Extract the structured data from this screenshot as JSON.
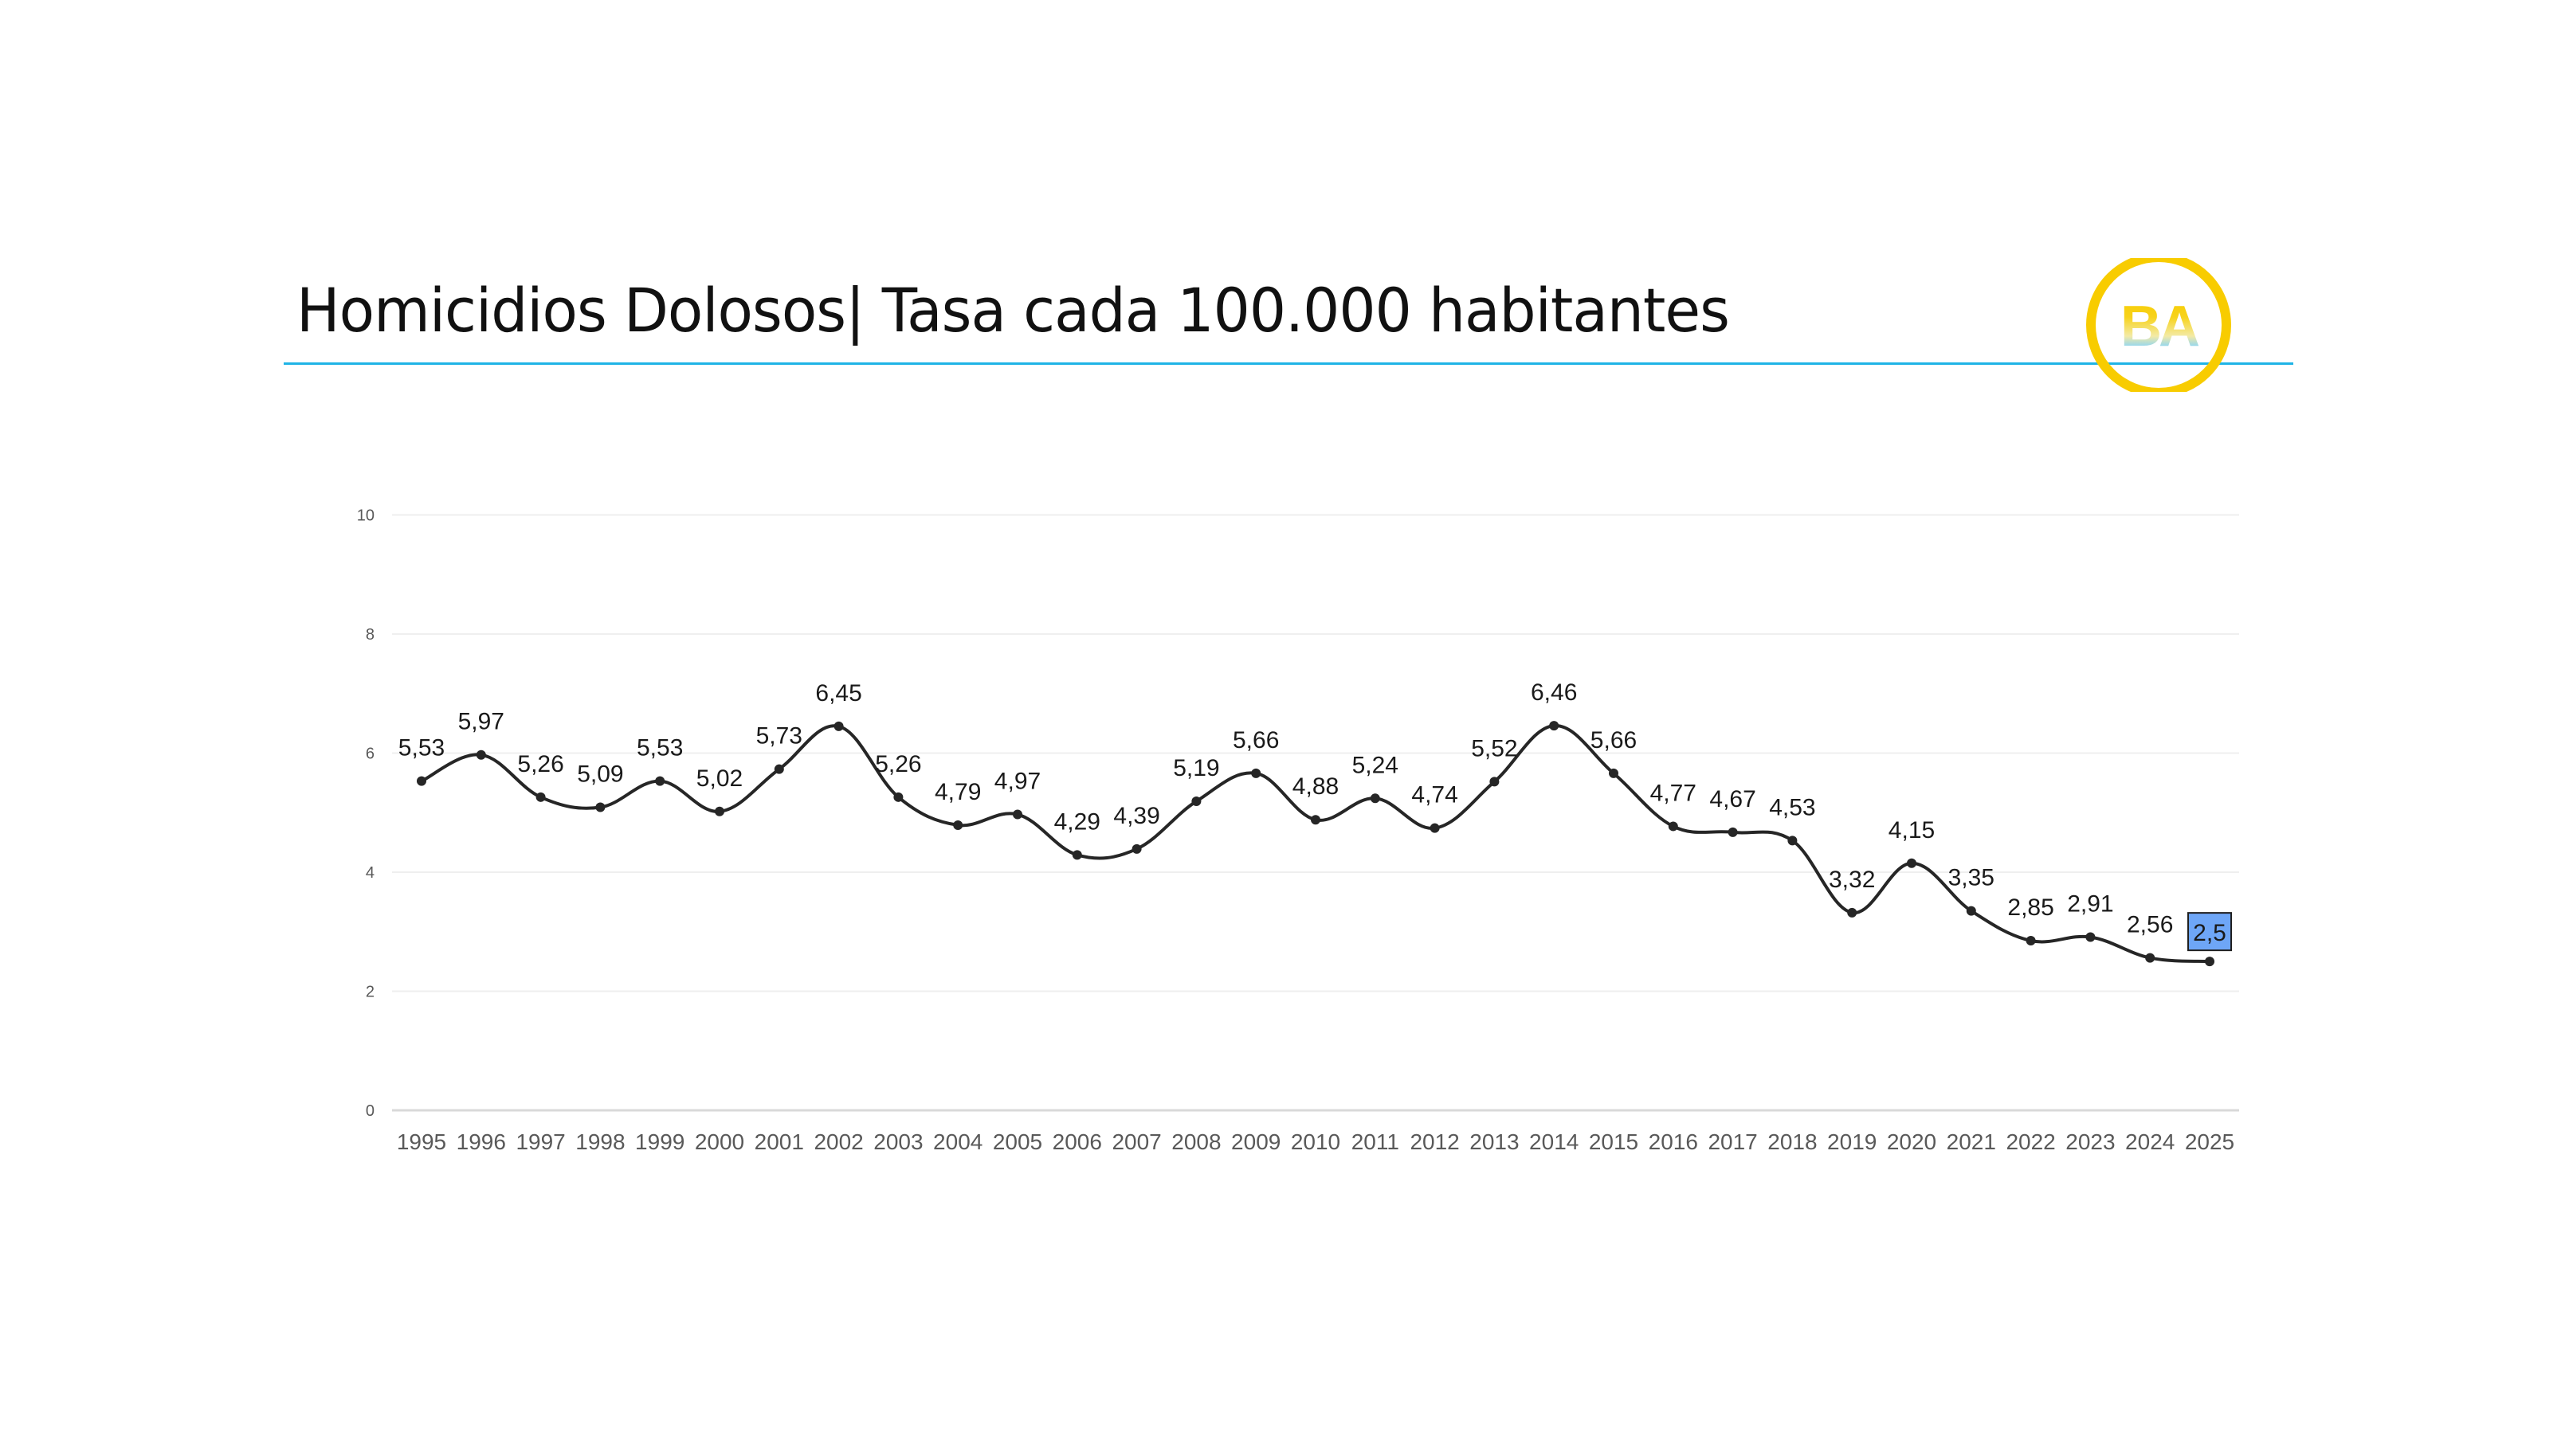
{
  "slide": {
    "title": "Homicidios Dolosos| Tasa cada 100.000 habitantes",
    "logo": {
      "text": "BA",
      "ring_color": "#f8cc00",
      "gradient_top": "#f8cc00",
      "gradient_mid": "#f3eaa6",
      "gradient_bottom": "#12aee8"
    },
    "rule_color": "#1fb4e6"
  },
  "chart_data": {
    "type": "line",
    "title": "Homicidios Dolosos| Tasa cada 100.000 habitantes",
    "xlabel": "",
    "ylabel": "",
    "ylim": [
      0,
      10
    ],
    "yticks": [
      0,
      2,
      4,
      6,
      8,
      10
    ],
    "grid": true,
    "legend": null,
    "categories": [
      "1995",
      "1996",
      "1997",
      "1998",
      "1999",
      "2000",
      "2001",
      "2002",
      "2003",
      "2004",
      "2005",
      "2006",
      "2007",
      "2008",
      "2009",
      "2010",
      "2011",
      "2012",
      "2013",
      "2014",
      "2015",
      "2016",
      "2017",
      "2018",
      "2019",
      "2020",
      "2021",
      "2022",
      "2023",
      "2024",
      "2025"
    ],
    "series": [
      {
        "name": "Tasa cada 100.000 habitantes",
        "color": "#262626",
        "smooth": true,
        "values": [
          5.53,
          5.97,
          5.26,
          5.09,
          5.53,
          5.02,
          5.73,
          6.45,
          5.26,
          4.79,
          4.97,
          4.29,
          4.39,
          5.19,
          5.66,
          4.88,
          5.24,
          4.74,
          5.52,
          6.46,
          5.66,
          4.77,
          4.67,
          4.53,
          3.32,
          4.15,
          3.35,
          2.85,
          2.91,
          2.56,
          2.5
        ],
        "labels": [
          "5,53",
          "5,97",
          "5,26",
          "5,09",
          "5,53",
          "5,02",
          "5,73",
          "6,45",
          "5,26",
          "4,79",
          "4,97",
          "4,29",
          "4,39",
          "5,19",
          "5,66",
          "4,88",
          "5,24",
          "4,74",
          "5,52",
          "6,46",
          "5,66",
          "4,77",
          "4,67",
          "4,53",
          "3,32",
          "4,15",
          "3,35",
          "2,85",
          "2,91",
          "2,56",
          "2,5"
        ]
      }
    ],
    "annotations": [
      {
        "category": "2025",
        "label": "2,5",
        "highlight_fill": "#6ea6f7",
        "highlight_border": "#1f1f1f"
      }
    ]
  }
}
